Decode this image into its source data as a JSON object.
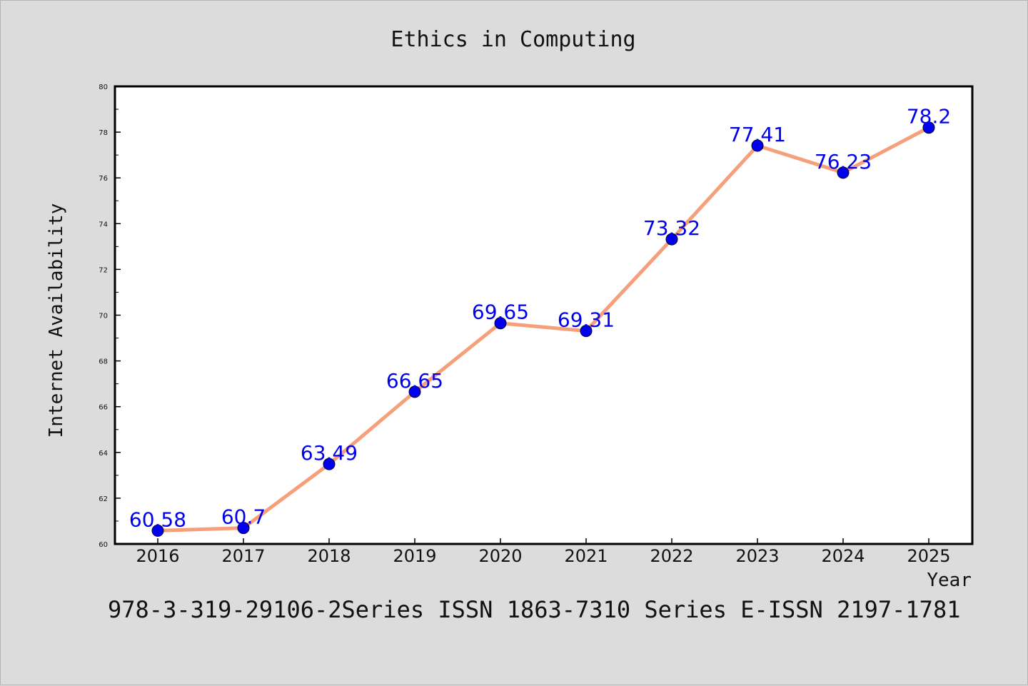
{
  "chart_data": {
    "type": "line",
    "title": "Ethics in Computing",
    "xlabel": "Year",
    "ylabel": "Internet Availability",
    "categories": [
      "2016",
      "2017",
      "2018",
      "2019",
      "2020",
      "2021",
      "2022",
      "2023",
      "2024",
      "2025"
    ],
    "series": [
      {
        "values": [
          60.58,
          60.7,
          63.49,
          66.65,
          69.65,
          69.31,
          73.32,
          77.41,
          76.23,
          78.2
        ],
        "labels": [
          "60.58",
          "60.7",
          "63.49",
          "66.65",
          "69.65",
          "69.31",
          "73.32",
          "77.41",
          "76.23",
          "78.2"
        ],
        "line_color": "#f5a07a",
        "marker_color": "#0000ee"
      }
    ],
    "ylim": [
      60,
      80
    ],
    "yticks": [
      "60",
      "62",
      "64",
      "66",
      "68",
      "70",
      "72",
      "74",
      "76",
      "78",
      "80"
    ],
    "grid": false,
    "legend": "none",
    "footer": "978-3-319-29106-2Series ISSN 1863-7310 Series E-ISSN 2197-1781"
  }
}
